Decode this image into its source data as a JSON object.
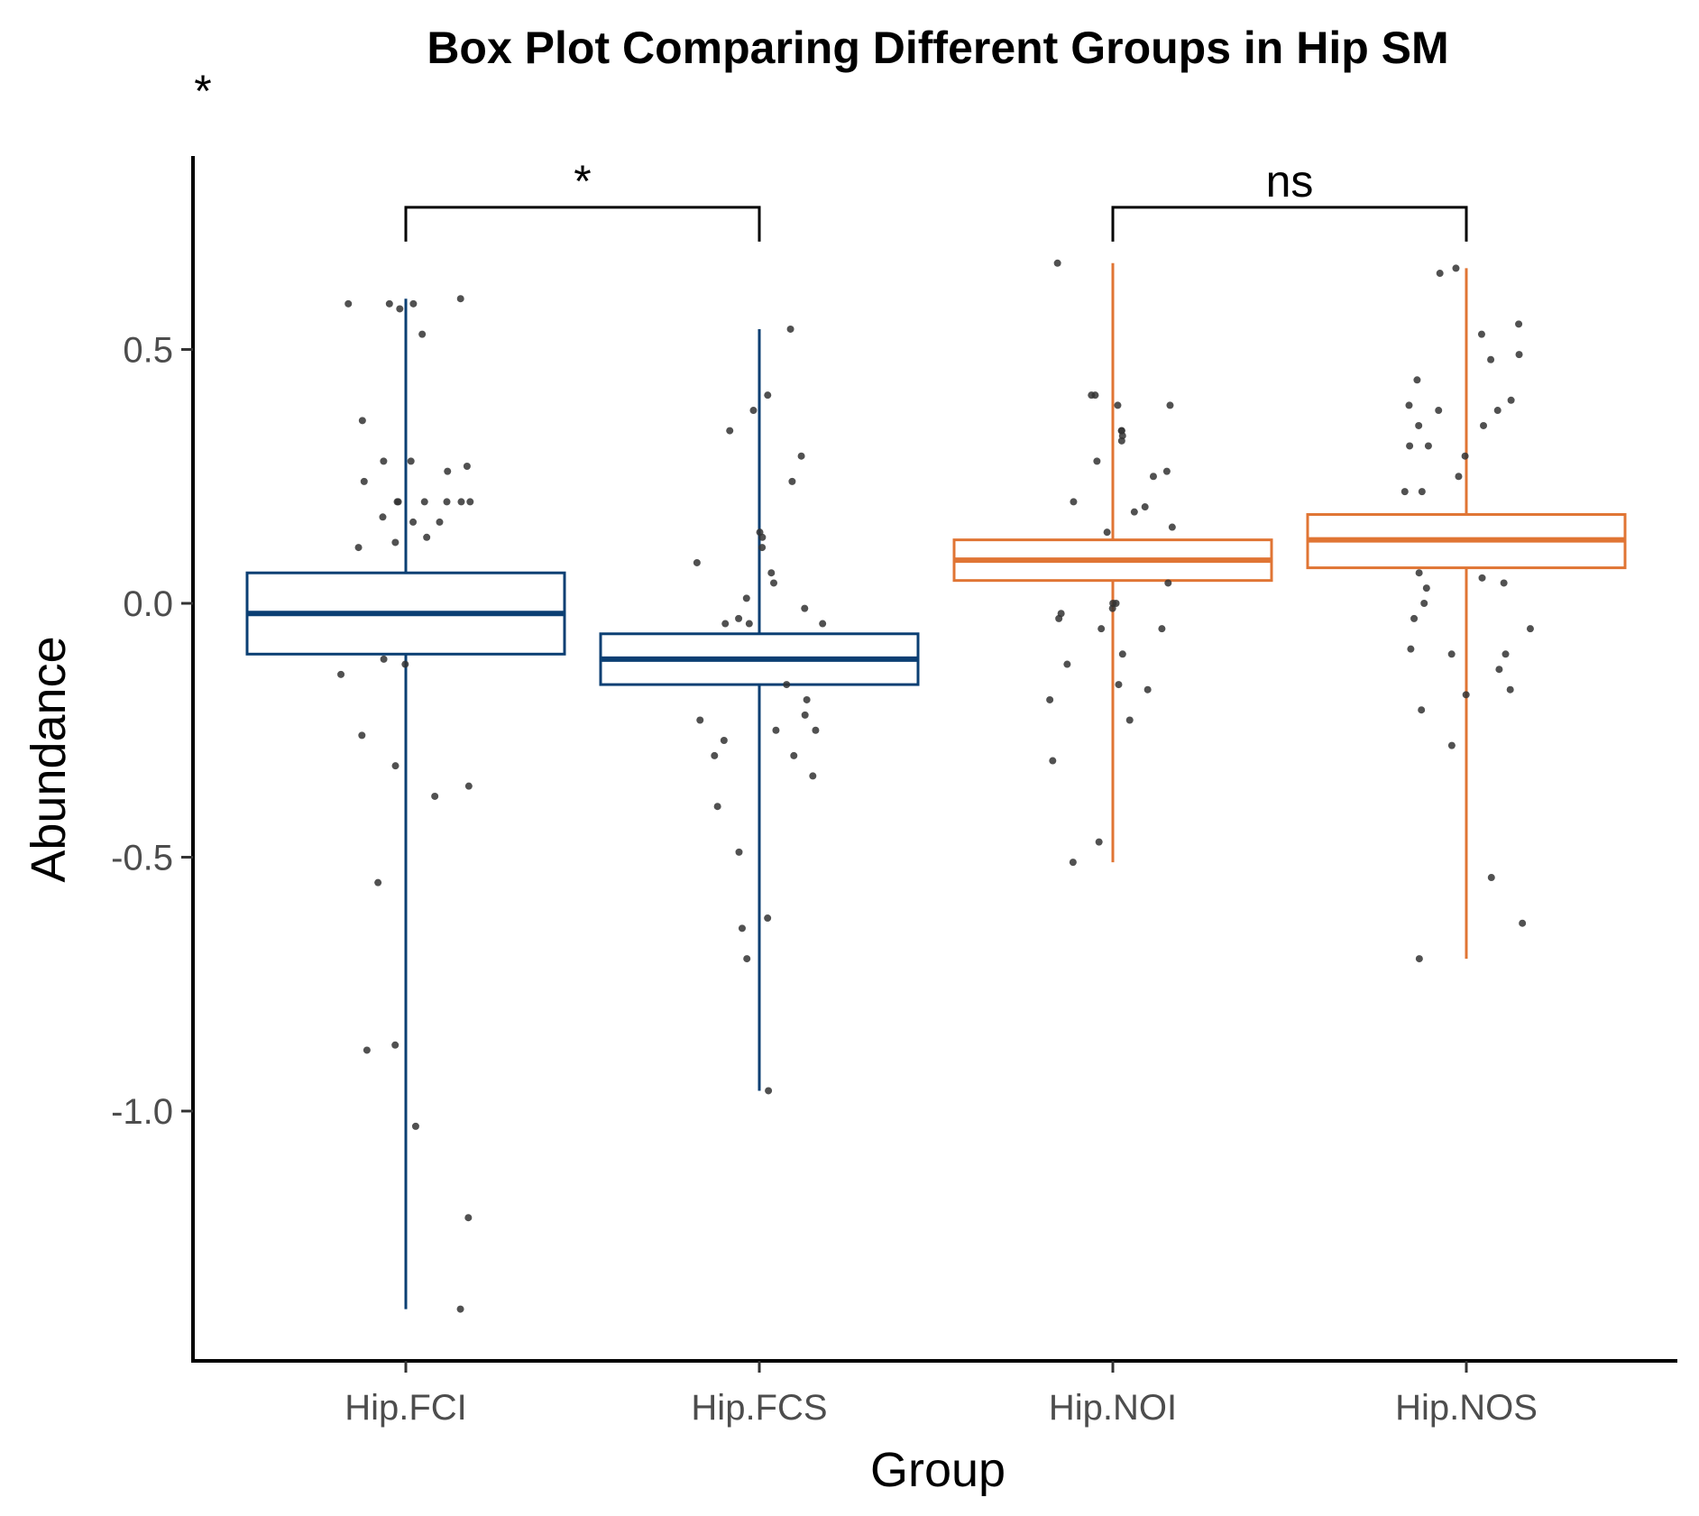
{
  "chart_data": {
    "type": "box",
    "title": "Box Plot Comparing Different Groups in Hip SM",
    "xlabel": "Group",
    "ylabel": "Abundance",
    "ylim": [
      -1.5,
      0.85
    ],
    "yticks": [
      -1.0,
      -0.5,
      0.0,
      0.5
    ],
    "ytick_labels": [
      "-1.0",
      "-0.5",
      "0.0",
      "0.5"
    ],
    "grid": false,
    "global_annotation": "*",
    "categories": [
      "Hip.FCI",
      "Hip.FCS",
      "Hip.NOI",
      "Hip.NOS"
    ],
    "colors": {
      "Hip.FCI": "#0b3f73",
      "Hip.FCS": "#0b3f73",
      "Hip.NOI": "#e07534",
      "Hip.NOS": "#e07534",
      "points": "#333333",
      "axis": "#000000"
    },
    "boxes": [
      {
        "group": "Hip.FCI",
        "q1": -0.1,
        "median": -0.02,
        "q3": 0.06,
        "whisker_low": -1.39,
        "whisker_high": 0.6
      },
      {
        "group": "Hip.FCS",
        "q1": -0.16,
        "median": -0.11,
        "q3": -0.06,
        "whisker_low": -0.96,
        "whisker_high": 0.54
      },
      {
        "group": "Hip.NOI",
        "q1": 0.045,
        "median": 0.085,
        "q3": 0.125,
        "whisker_low": -0.51,
        "whisker_high": 0.67
      },
      {
        "group": "Hip.NOS",
        "q1": 0.07,
        "median": 0.125,
        "q3": 0.175,
        "whisker_low": -0.7,
        "whisker_high": 0.66
      }
    ],
    "points": [
      {
        "group": "Hip.FCI",
        "values": [
          0.6,
          0.59,
          0.59,
          0.59,
          0.58,
          0.53,
          0.36,
          0.28,
          0.28,
          0.27,
          0.26,
          0.24,
          0.2,
          0.2,
          0.2,
          0.2,
          0.2,
          0.2,
          0.17,
          0.16,
          0.16,
          0.13,
          0.12,
          0.11,
          -0.11,
          -0.12,
          -0.14,
          -0.26,
          -0.32,
          -0.36,
          -0.38,
          -0.55,
          -0.87,
          -0.88,
          -1.03,
          -1.21,
          -1.39
        ]
      },
      {
        "group": "Hip.FCS",
        "values": [
          0.54,
          0.41,
          0.38,
          0.34,
          0.29,
          0.24,
          0.14,
          0.13,
          0.11,
          0.08,
          0.06,
          0.04,
          0.01,
          -0.01,
          -0.03,
          -0.04,
          -0.04,
          -0.04,
          -0.16,
          -0.19,
          -0.22,
          -0.23,
          -0.25,
          -0.25,
          -0.27,
          -0.3,
          -0.3,
          -0.34,
          -0.4,
          -0.49,
          -0.62,
          -0.64,
          -0.7,
          -0.96
        ]
      },
      {
        "group": "Hip.NOI",
        "values": [
          0.67,
          0.41,
          0.41,
          0.39,
          0.39,
          0.34,
          0.34,
          0.33,
          0.32,
          0.28,
          0.26,
          0.25,
          0.2,
          0.19,
          0.18,
          0.15,
          0.14,
          0.04,
          0.0,
          0.0,
          -0.01,
          -0.02,
          -0.03,
          -0.05,
          -0.05,
          -0.1,
          -0.12,
          -0.16,
          -0.17,
          -0.19,
          -0.23,
          -0.31,
          -0.47,
          -0.51
        ]
      },
      {
        "group": "Hip.NOS",
        "values": [
          0.66,
          0.65,
          0.55,
          0.53,
          0.49,
          0.48,
          0.44,
          0.4,
          0.39,
          0.38,
          0.38,
          0.35,
          0.35,
          0.31,
          0.31,
          0.29,
          0.25,
          0.22,
          0.22,
          0.06,
          0.05,
          0.04,
          0.03,
          0.0,
          -0.03,
          -0.05,
          -0.09,
          -0.1,
          -0.1,
          -0.13,
          -0.17,
          -0.18,
          -0.21,
          -0.28,
          -0.54,
          -0.63,
          -0.7
        ]
      }
    ],
    "comparisons": [
      {
        "from": "Hip.FCI",
        "to": "Hip.FCS",
        "label": "*",
        "y": 0.78
      },
      {
        "from": "Hip.NOI",
        "to": "Hip.NOS",
        "label": "ns",
        "y": 0.78
      }
    ]
  }
}
